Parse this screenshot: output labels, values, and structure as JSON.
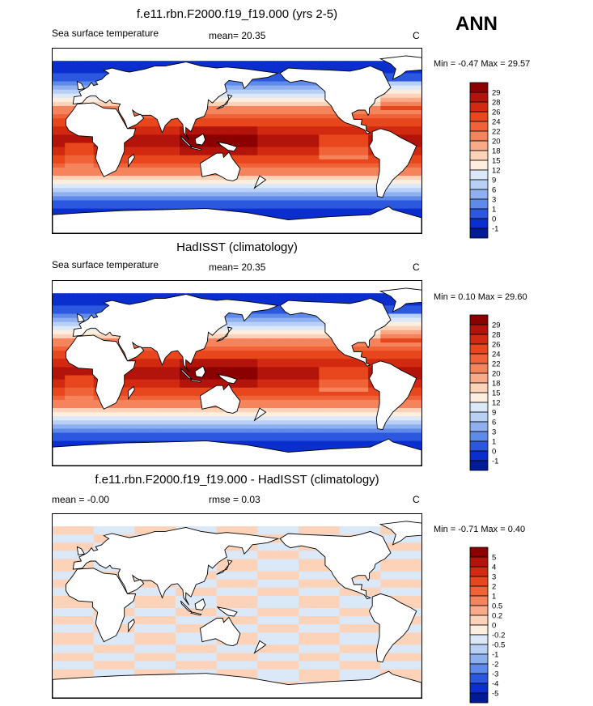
{
  "season": "ANN",
  "panels": [
    {
      "title": "f.e11.rbn.F2000.f19_f19.000 (yrs 2-5)",
      "left_label": "Sea surface temperature",
      "mid_label": "mean=  20.35",
      "units": "C",
      "minmax": "Min =  -0.47 Max =  29.57",
      "levels": [
        "29",
        "28",
        "26",
        "24",
        "22",
        "20",
        "18",
        "15",
        "12",
        "9",
        "6",
        "3",
        "1",
        "0",
        "-1"
      ],
      "colors": [
        "#8b0000",
        "#b2140b",
        "#d22a10",
        "#e8461c",
        "#f06238",
        "#f5845c",
        "#f9aa88",
        "#fcd2b8",
        "#fdeee0",
        "#dbe8f8",
        "#b8d0f5",
        "#8fb0f0",
        "#5e8aea",
        "#2c58e0",
        "#0a2fce",
        "#001a98"
      ]
    },
    {
      "title": "HadISST (climatology)",
      "left_label": "Sea surface temperature",
      "mid_label": "mean=  20.35",
      "units": "C",
      "minmax": "Min =   0.10 Max =  29.60",
      "levels": [
        "29",
        "28",
        "26",
        "24",
        "22",
        "20",
        "18",
        "15",
        "12",
        "9",
        "6",
        "3",
        "1",
        "0",
        "-1"
      ],
      "colors": [
        "#8b0000",
        "#b2140b",
        "#d22a10",
        "#e8461c",
        "#f06238",
        "#f5845c",
        "#f9aa88",
        "#fcd2b8",
        "#fdeee0",
        "#dbe8f8",
        "#b8d0f5",
        "#8fb0f0",
        "#5e8aea",
        "#2c58e0",
        "#0a2fce",
        "#001a98"
      ]
    },
    {
      "title": "f.e11.rbn.F2000.f19_f19.000 - HadISST (climatology)",
      "left_label": "mean =  -0.00",
      "mid_label": "rmse =   0.03",
      "units": "C",
      "minmax": "Min =  -0.71 Max =   0.40",
      "levels": [
        "5",
        "4",
        "3",
        "2",
        "1",
        "0.5",
        "0.2",
        "0",
        "-0.2",
        "-0.5",
        "-1",
        "-2",
        "-3",
        "-4",
        "-5"
      ],
      "colors": [
        "#8b0000",
        "#b2140b",
        "#d22a10",
        "#e8461c",
        "#f06238",
        "#f5845c",
        "#f9aa88",
        "#fcd2b8",
        "#fdeee0",
        "#dbe8f8",
        "#b8d0f5",
        "#8fb0f0",
        "#5e8aea",
        "#2c58e0",
        "#0a2fce",
        "#001a98"
      ]
    }
  ]
}
